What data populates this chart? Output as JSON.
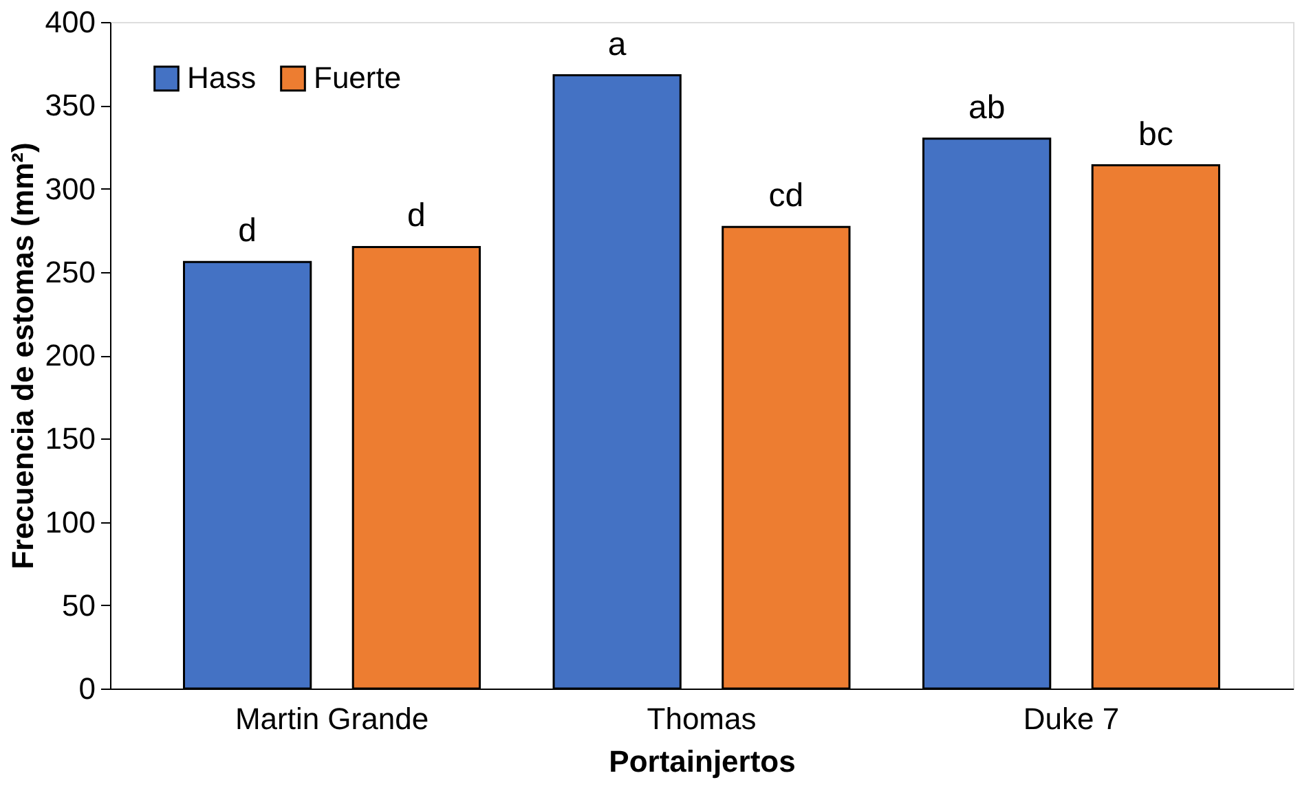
{
  "chart_data": {
    "type": "bar",
    "xlabel": "Portainjertos",
    "ylabel": "Frecuencia de estomas (mm²)",
    "categories": [
      "Martin Grande",
      "Thomas",
      "Duke 7"
    ],
    "series": [
      {
        "name": "Hass",
        "color": "#4472c4",
        "values": [
          256,
          368,
          330
        ],
        "value_labels": [
          "d",
          "a",
          "ab"
        ]
      },
      {
        "name": "Fuerte",
        "color": "#ed7d31",
        "values": [
          265,
          277,
          314
        ],
        "value_labels": [
          "d",
          "cd",
          "bc"
        ]
      }
    ],
    "ylim": [
      0,
      400
    ],
    "yticks": [
      0,
      50,
      100,
      150,
      200,
      250,
      300,
      350,
      400
    ],
    "grid": false,
    "legend": "top left"
  }
}
